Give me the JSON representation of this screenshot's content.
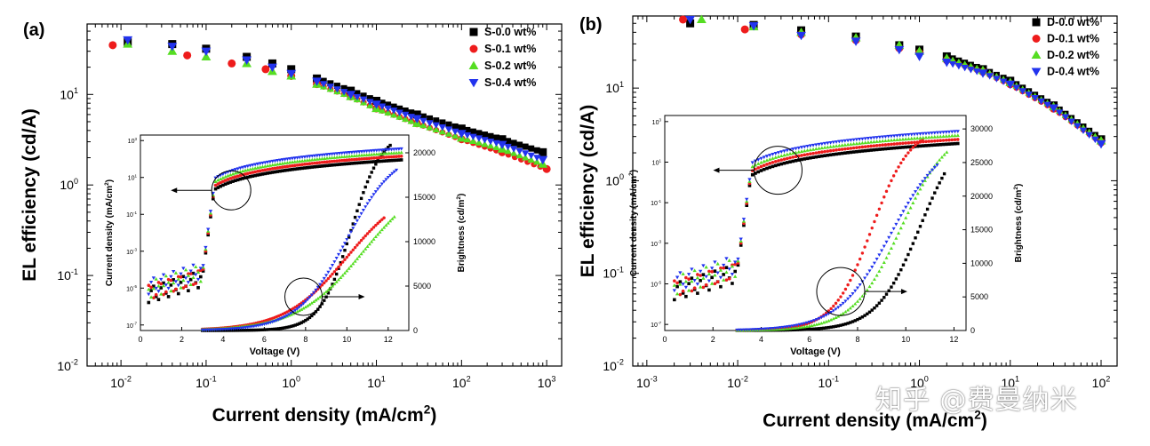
{
  "watermark": "知乎 @费曼纳米",
  "chart_data": [
    {
      "panel": "(a)",
      "type": "scatter",
      "xlabel": "Current density (mA/cm",
      "xlabel_sup": "2",
      "xlabel_end": ")",
      "ylabel": "EL efficiency (cd/A)",
      "x_scale": "log",
      "y_scale": "log",
      "xlim": [
        0.004,
        1500
      ],
      "ylim": [
        0.01,
        60
      ],
      "x_ticks": [
        "10",
        "10",
        "10",
        "10",
        "10",
        "10"
      ],
      "x_tick_exp": [
        "-2",
        "-1",
        "0",
        "1",
        "2",
        "3"
      ],
      "y_ticks": [
        "10",
        "10",
        "10",
        "10"
      ],
      "y_tick_exp": [
        "-2",
        "-1",
        "0",
        "1"
      ],
      "legend_position": "top-right",
      "series": [
        {
          "name": "S-0.0 wt%",
          "marker": "square",
          "color": "#000000",
          "x": [
            0.012,
            0.04,
            0.1,
            0.3,
            0.6,
            1,
            2,
            5,
            10,
            30,
            100,
            300,
            900
          ],
          "y": [
            38,
            36,
            32,
            26,
            22,
            19,
            15,
            11,
            8.5,
            6,
            4.2,
            3.2,
            2.3
          ]
        },
        {
          "name": "S-0.1 wt%",
          "marker": "circle",
          "color": "#ee1c1c",
          "x": [
            0.008,
            0.06,
            0.2,
            0.5,
            1,
            2,
            5,
            10,
            30,
            100,
            300,
            1000
          ],
          "y": [
            35,
            27,
            22,
            19,
            16,
            13,
            9.5,
            7,
            4.8,
            3.2,
            2.3,
            1.5
          ]
        },
        {
          "name": "S-0.2 wt%",
          "marker": "triangle-up",
          "color": "#55dd22",
          "x": [
            0.012,
            0.04,
            0.1,
            0.3,
            0.6,
            1,
            2,
            5,
            10,
            30,
            100,
            300,
            900
          ],
          "y": [
            36,
            30,
            26,
            22,
            18,
            16,
            13,
            9.5,
            7,
            4.8,
            3.3,
            2.5,
            1.7
          ]
        },
        {
          "name": "S-0.4 wt%",
          "marker": "triangle-down",
          "color": "#2233ee",
          "x": [
            0.012,
            0.04,
            0.1,
            0.3,
            0.6,
            1,
            2,
            5,
            10,
            30,
            100,
            300,
            900
          ],
          "y": [
            40,
            34,
            30,
            24,
            20,
            17,
            14,
            10,
            7.8,
            5.4,
            3.7,
            2.8,
            1.9
          ]
        }
      ],
      "inset": {
        "xlabel": "Voltage (V)",
        "ylabel_left": "Current density (mA/cm",
        "ylabel_left_sup": "2",
        "ylabel_left_end": ")",
        "ylabel_right": "Brightness (cd/m",
        "ylabel_right_sup": "2",
        "ylabel_right_end": ")",
        "xlim": [
          0,
          13
        ],
        "x_ticks": [
          "0",
          "2",
          "4",
          "6",
          "8",
          "10",
          "12"
        ],
        "right_ticks": [
          "0",
          "5000",
          "10000",
          "15000",
          "20000"
        ],
        "right_max": 22000,
        "left_tick_exp": [
          "-7",
          "-5",
          "-3",
          "-1",
          "1",
          "3"
        ]
      }
    },
    {
      "panel": "(b)",
      "type": "scatter",
      "xlabel": "Current density (mA/cm",
      "xlabel_sup": "2",
      "xlabel_end": ")",
      "ylabel": "EL efficiency (cd/A)",
      "x_scale": "log",
      "y_scale": "log",
      "xlim": [
        0.0007,
        150
      ],
      "ylim": [
        0.01,
        60
      ],
      "x_ticks": [
        "10",
        "10",
        "10",
        "10",
        "10",
        "10"
      ],
      "x_tick_exp": [
        "-3",
        "-2",
        "-1",
        "0",
        "1",
        "2"
      ],
      "y_ticks": [
        "10",
        "10",
        "10",
        "10"
      ],
      "y_tick_exp": [
        "-2",
        "-1",
        "0",
        "1"
      ],
      "legend_position": "top-right",
      "series": [
        {
          "name": "D-0.0 wt%",
          "marker": "square",
          "color": "#000000",
          "x": [
            0.003,
            0.015,
            0.05,
            0.2,
            0.6,
            1,
            2,
            5,
            10,
            30,
            100
          ],
          "y": [
            50,
            48,
            42,
            36,
            29,
            26,
            22,
            16,
            12,
            6.5,
            2.8
          ]
        },
        {
          "name": "D-0.1 wt%",
          "marker": "circle",
          "color": "#ee1c1c",
          "x": [
            0.0025,
            0.012,
            0.05,
            0.2,
            0.6,
            1,
            2,
            5,
            10,
            30,
            100
          ],
          "y": [
            55,
            43,
            38,
            33,
            27,
            24,
            20,
            15,
            11,
            6,
            2.6
          ]
        },
        {
          "name": "D-0.2 wt%",
          "marker": "triangle-up",
          "color": "#55dd22",
          "x": [
            0.004,
            0.015,
            0.05,
            0.2,
            0.6,
            1,
            2,
            5,
            10,
            30,
            100
          ],
          "y": [
            55,
            46,
            40,
            35,
            29,
            25,
            21,
            15.5,
            11.5,
            6.3,
            2.7
          ]
        },
        {
          "name": "D-0.4 wt%",
          "marker": "triangle-down",
          "color": "#2233ee",
          "x": [
            0.003,
            0.015,
            0.05,
            0.2,
            0.6,
            1,
            2,
            5,
            10,
            30,
            100
          ],
          "y": [
            55,
            47,
            37,
            32,
            26,
            22,
            19,
            14.5,
            11,
            6.1,
            2.5
          ]
        }
      ],
      "inset": {
        "xlabel": "Voltage (V)",
        "ylabel_left": "Current density (mA/cm",
        "ylabel_left_sup": "2",
        "ylabel_left_end": ")",
        "ylabel_right": "Brightness (cd/m",
        "ylabel_right_sup": "2",
        "ylabel_right_end": ")",
        "xlim": [
          0,
          12.5
        ],
        "x_ticks": [
          "0",
          "2",
          "4",
          "6",
          "8",
          "10",
          "12"
        ],
        "right_ticks": [
          "0",
          "5000",
          "10000",
          "15000",
          "20000",
          "25000",
          "30000"
        ],
        "right_max": 32000,
        "left_tick_exp": [
          "-7",
          "-5",
          "-3",
          "-1",
          "1",
          "3"
        ]
      }
    }
  ]
}
